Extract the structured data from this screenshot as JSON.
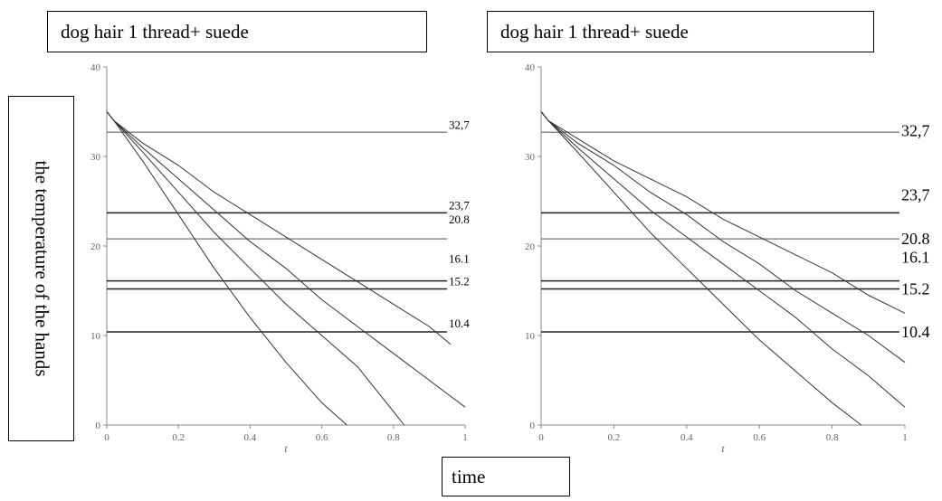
{
  "labels": {
    "ylabel": "the temperature of the hands",
    "xlabel": "time"
  },
  "chart_data": [
    {
      "type": "line",
      "title": "dog hair 1 thread+ suede",
      "xlabel": "t",
      "ylabel": "the temperature of the hands",
      "xlim": [
        0,
        1
      ],
      "ylim": [
        0,
        40
      ],
      "xticks": [
        "0",
        "0.2",
        "0.4",
        "0.6",
        "0.8",
        "1"
      ],
      "yticks": [
        "0",
        "10",
        "20",
        "30",
        "40"
      ],
      "ytick_values": [
        0,
        10,
        20,
        30,
        40
      ],
      "xtick_values": [
        0,
        0.2,
        0.4,
        0.6,
        0.8,
        1
      ],
      "reference_lines": [
        {
          "label": "32,7",
          "value": 32.7
        },
        {
          "label": "23,7",
          "value": 23.7
        },
        {
          "label": "20.8",
          "value": 20.8
        },
        {
          "label": "16.1",
          "value": 16.1
        },
        {
          "label": "15.2",
          "value": 15.2
        },
        {
          "label": "10.4",
          "value": 10.4
        }
      ],
      "series": [
        {
          "x": [
            0,
            0.02,
            0.1,
            0.2,
            0.3,
            0.4,
            0.5,
            0.6,
            0.67
          ],
          "values": [
            35,
            34,
            29.5,
            23.5,
            17.5,
            12,
            7,
            2.5,
            0
          ]
        },
        {
          "x": [
            0,
            0.02,
            0.1,
            0.2,
            0.3,
            0.4,
            0.5,
            0.6,
            0.7,
            0.8,
            0.83
          ],
          "values": [
            35,
            34,
            30.5,
            26,
            21.5,
            17.5,
            13.5,
            10,
            6.5,
            1.5,
            0
          ]
        },
        {
          "x": [
            0,
            0.02,
            0.1,
            0.2,
            0.3,
            0.4,
            0.5,
            0.6,
            0.7,
            0.8,
            0.9,
            1.0
          ],
          "values": [
            35,
            34,
            31,
            27.5,
            24,
            20.5,
            17.5,
            14,
            11,
            8,
            5,
            2
          ]
        },
        {
          "x": [
            0,
            0.02,
            0.1,
            0.2,
            0.3,
            0.4,
            0.5,
            0.6,
            0.7,
            0.8,
            0.9,
            0.96
          ],
          "values": [
            35,
            34,
            31.5,
            29,
            26,
            23.5,
            21,
            18.5,
            16,
            13.5,
            11,
            9
          ]
        }
      ]
    },
    {
      "type": "line",
      "title": "dog hair 1 thread+ suede",
      "xlabel": "t",
      "xlim": [
        0,
        1
      ],
      "ylim": [
        0,
        40
      ],
      "xticks": [
        "0",
        "0.2",
        "0.4",
        "0.6",
        "0.8",
        "1"
      ],
      "yticks": [
        "0",
        "10",
        "20",
        "30",
        "40"
      ],
      "ytick_values": [
        0,
        10,
        20,
        30,
        40
      ],
      "xtick_values": [
        0,
        0.2,
        0.4,
        0.6,
        0.8,
        1
      ],
      "reference_lines": [
        {
          "label": "32,7",
          "value": 32.7
        },
        {
          "label": "23,7",
          "value": 23.7
        },
        {
          "label": "20.8",
          "value": 20.8
        },
        {
          "label": "16.1",
          "value": 16.1
        },
        {
          "label": "15.2",
          "value": 15.2
        },
        {
          "label": "10.4",
          "value": 10.4
        }
      ],
      "series": [
        {
          "x": [
            0,
            0.02,
            0.1,
            0.2,
            0.3,
            0.4,
            0.5,
            0.6,
            0.7,
            0.8,
            0.88
          ],
          "values": [
            35,
            34,
            30.5,
            26,
            21.5,
            17.5,
            13.5,
            9.5,
            6,
            2.5,
            0
          ]
        },
        {
          "x": [
            0,
            0.02,
            0.1,
            0.2,
            0.3,
            0.4,
            0.5,
            0.6,
            0.7,
            0.8,
            0.9,
            1.0
          ],
          "values": [
            35,
            34,
            31,
            27.5,
            24,
            21,
            18,
            15,
            12,
            8.5,
            5.5,
            2
          ]
        },
        {
          "x": [
            0,
            0.02,
            0.1,
            0.2,
            0.3,
            0.4,
            0.5,
            0.6,
            0.7,
            0.8,
            0.9,
            1.0
          ],
          "values": [
            35,
            34,
            31.5,
            29,
            26,
            23.5,
            20.5,
            18,
            15,
            12.5,
            10,
            7
          ]
        },
        {
          "x": [
            0,
            0.02,
            0.1,
            0.2,
            0.3,
            0.4,
            0.5,
            0.6,
            0.7,
            0.8,
            0.9,
            1.0
          ],
          "values": [
            35,
            34,
            32,
            29.5,
            27.5,
            25.5,
            23,
            21,
            19,
            17,
            14.5,
            12.5
          ]
        }
      ]
    }
  ]
}
